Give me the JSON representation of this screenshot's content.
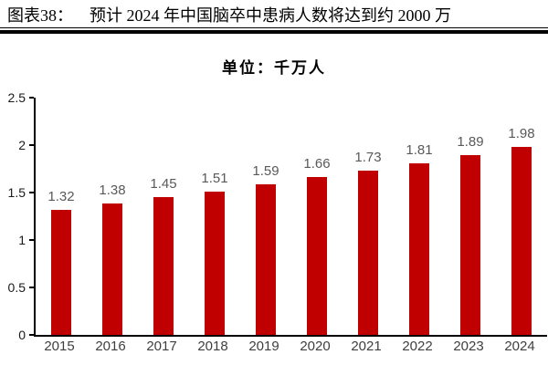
{
  "header": {
    "label": "图表38：",
    "title": "预计 2024 年中国脑卒中患病人数将达到约 2000 万"
  },
  "chart_data": {
    "type": "bar",
    "title": "预计 2024 年中国脑卒中患病人数将达到约 2000 万",
    "unit_label": "单位：千万人",
    "categories": [
      "2015",
      "2016",
      "2017",
      "2018",
      "2019",
      "2020",
      "2021",
      "2022",
      "2023",
      "2024"
    ],
    "values": [
      1.32,
      1.38,
      1.45,
      1.51,
      1.59,
      1.66,
      1.73,
      1.81,
      1.89,
      1.98
    ],
    "value_labels": [
      "1.32",
      "1.38",
      "1.45",
      "1.51",
      "1.59",
      "1.66",
      "1.73",
      "1.81",
      "1.89",
      "1.98"
    ],
    "xlabel": "",
    "ylabel": "",
    "ylim": [
      0,
      2.5
    ],
    "yticks": [
      0,
      0.5,
      1,
      1.5,
      2,
      2.5
    ],
    "ytick_labels": [
      "0",
      "0.5",
      "1",
      "1.5",
      "2",
      "2.5"
    ],
    "grid": false,
    "legend_position": "none",
    "bar_color": "#C00000",
    "value_label_color": "#595959",
    "axis_color": "#000000"
  }
}
